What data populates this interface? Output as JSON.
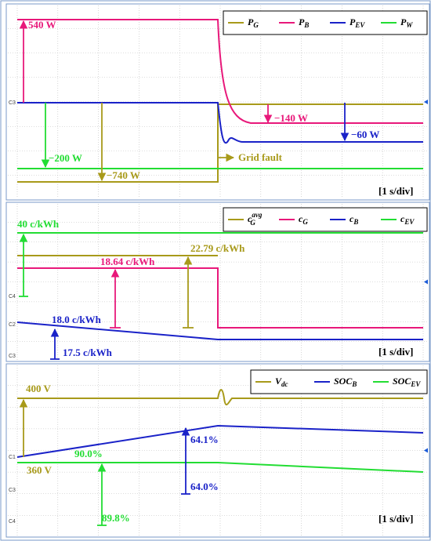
{
  "panels": [
    {
      "legend": [
        {
          "symbol": "P",
          "sub": "G"
        },
        {
          "symbol": "P",
          "sub": "B"
        },
        {
          "symbol": "P",
          "sub": "EV"
        },
        {
          "symbol": "P",
          "sub": "W"
        }
      ],
      "annotations": [
        "540 W",
        "−200 W",
        "−740 W",
        "−140 W",
        "−60 W",
        "Grid fault"
      ],
      "channels": [
        "C3"
      ],
      "time_div": "[1 s/div]"
    },
    {
      "legend": [
        {
          "symbol": "c",
          "sub": "G",
          "sup": "avg"
        },
        {
          "symbol": "c",
          "sub": "G"
        },
        {
          "symbol": "c",
          "sub": "B"
        },
        {
          "symbol": "c",
          "sub": "EV"
        }
      ],
      "annotations": [
        "40 c/kWh",
        "18.64 c/kWh",
        "22.79 c/kWh",
        "18.0 c/kWh",
        "17.5 c/kWh"
      ],
      "channels": [
        "C4",
        "C2",
        "C3"
      ],
      "time_div": "[1 s/div]"
    },
    {
      "legend": [
        {
          "symbol": "V",
          "sub": "dc"
        },
        {
          "symbol": "SOC",
          "sub": "B"
        },
        {
          "symbol": "SOC",
          "sub": "EV"
        }
      ],
      "annotations": [
        "400 V",
        "360 V",
        "90.0%",
        "89.8%",
        "64.1%",
        "64.0%"
      ],
      "channels": [
        "C1",
        "C3",
        "C4"
      ],
      "time_div": "[1 s/div]"
    }
  ]
}
